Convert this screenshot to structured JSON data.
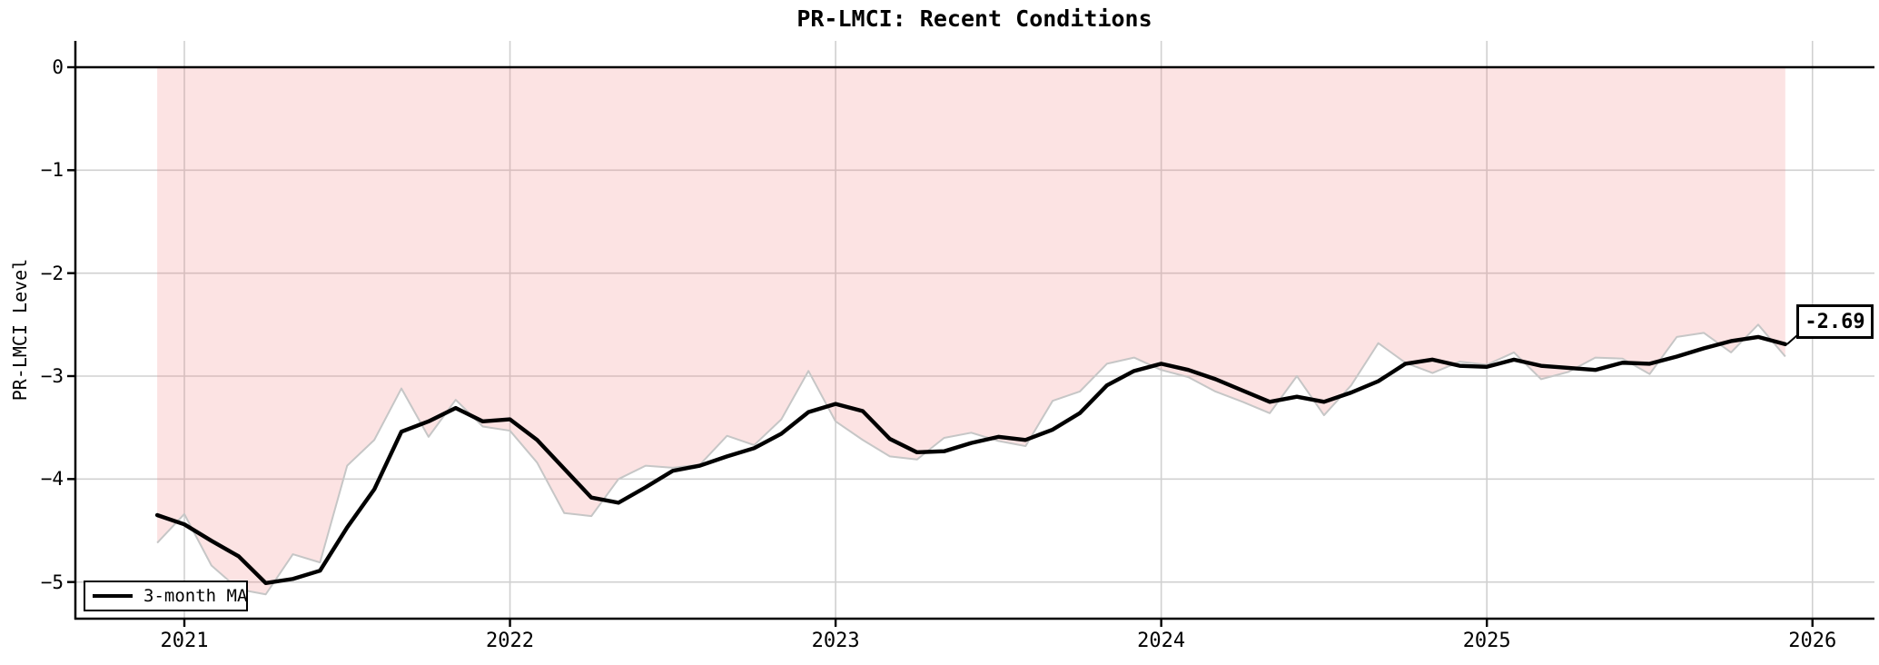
{
  "title": "PR-LMCI: Recent Conditions",
  "y_axis_label": "PR-LMCI Level",
  "legend": {
    "ma_label": "3-month MA"
  },
  "annotation": {
    "text": "-2.69",
    "value": -2.69,
    "month": "2025-12"
  },
  "x_tick_labels": [
    "2021",
    "2022",
    "2023",
    "2024",
    "2025",
    "2026"
  ],
  "y_tick_labels": [
    "0",
    "−1",
    "−2",
    "−3",
    "−4",
    "−5"
  ],
  "colors": {
    "ma_line": "#000000",
    "raw_line": "#c6c6c6",
    "fill": "rgba(240,128,128,0.22)",
    "grid": "#d0d0d0",
    "axis": "#000000",
    "background": "#ffffff",
    "text": "#000000"
  },
  "chart_data": {
    "type": "line",
    "title": "PR-LMCI: Recent Conditions",
    "xlabel": "",
    "ylabel": "PR-LMCI Level",
    "ylim": [
      -5.35,
      0.26
    ],
    "x_ticks_years": [
      2021,
      2022,
      2023,
      2024,
      2025,
      2026
    ],
    "y_ticks": [
      0,
      -1,
      -2,
      -3,
      -4,
      -5
    ],
    "grid": true,
    "legend_position": "lower-left",
    "zero_reference_line": 0,
    "shaded_region": {
      "between": "monthly values and 0",
      "style": "light red fill"
    },
    "months": [
      "2020-12",
      "2021-01",
      "2021-02",
      "2021-03",
      "2021-04",
      "2021-05",
      "2021-06",
      "2021-07",
      "2021-08",
      "2021-09",
      "2021-10",
      "2021-11",
      "2021-12",
      "2022-01",
      "2022-02",
      "2022-03",
      "2022-04",
      "2022-05",
      "2022-06",
      "2022-07",
      "2022-08",
      "2022-09",
      "2022-10",
      "2022-11",
      "2022-12",
      "2023-01",
      "2023-02",
      "2023-03",
      "2023-04",
      "2023-05",
      "2023-06",
      "2023-07",
      "2023-08",
      "2023-09",
      "2023-10",
      "2023-11",
      "2023-12",
      "2024-01",
      "2024-02",
      "2024-03",
      "2024-04",
      "2024-05",
      "2024-06",
      "2024-07",
      "2024-08",
      "2024-09",
      "2024-10",
      "2024-11",
      "2024-12",
      "2025-01",
      "2025-02",
      "2025-03",
      "2025-04",
      "2025-05",
      "2025-06",
      "2025-07",
      "2025-08",
      "2025-09",
      "2025-10",
      "2025-11",
      "2025-12"
    ],
    "series": [
      {
        "name": "PR-LMCI monthly",
        "values": [
          -4.62,
          -4.34,
          -4.84,
          -5.07,
          -5.12,
          -4.73,
          -4.81,
          -3.87,
          -3.62,
          -3.12,
          -3.59,
          -3.23,
          -3.49,
          -3.53,
          -3.84,
          -4.33,
          -4.36,
          -4.0,
          -3.87,
          -3.89,
          -3.86,
          -3.58,
          -3.67,
          -3.42,
          -2.95,
          -3.44,
          -3.62,
          -3.78,
          -3.81,
          -3.6,
          -3.55,
          -3.63,
          -3.68,
          -3.24,
          -3.15,
          -2.88,
          -2.82,
          -2.94,
          -3.01,
          -3.15,
          -3.25,
          -3.36,
          -3.0,
          -3.38,
          -3.09,
          -2.68,
          -2.87,
          -2.97,
          -2.86,
          -2.89,
          -2.77,
          -3.03,
          -2.96,
          -2.82,
          -2.83,
          -2.98,
          -2.62,
          -2.58,
          -2.77,
          -2.5,
          -2.81
        ]
      },
      {
        "name": "3-month MA",
        "values": [
          -4.35,
          -4.44,
          -4.6,
          -4.75,
          -5.01,
          -4.97,
          -4.89,
          -4.47,
          -4.1,
          -3.54,
          -3.44,
          -3.31,
          -3.44,
          -3.42,
          -3.62,
          -3.9,
          -4.18,
          -4.23,
          -4.08,
          -3.92,
          -3.87,
          -3.78,
          -3.7,
          -3.56,
          -3.35,
          -3.27,
          -3.34,
          -3.61,
          -3.74,
          -3.73,
          -3.65,
          -3.59,
          -3.62,
          -3.52,
          -3.36,
          -3.09,
          -2.95,
          -2.88,
          -2.94,
          -3.03,
          -3.14,
          -3.25,
          -3.2,
          -3.25,
          -3.16,
          -3.05,
          -2.88,
          -2.84,
          -2.9,
          -2.91,
          -2.84,
          -2.9,
          -2.92,
          -2.94,
          -2.87,
          -2.88,
          -2.81,
          -2.73,
          -2.66,
          -2.62,
          -2.69
        ]
      }
    ],
    "last_value_annotation": "-2.69"
  }
}
